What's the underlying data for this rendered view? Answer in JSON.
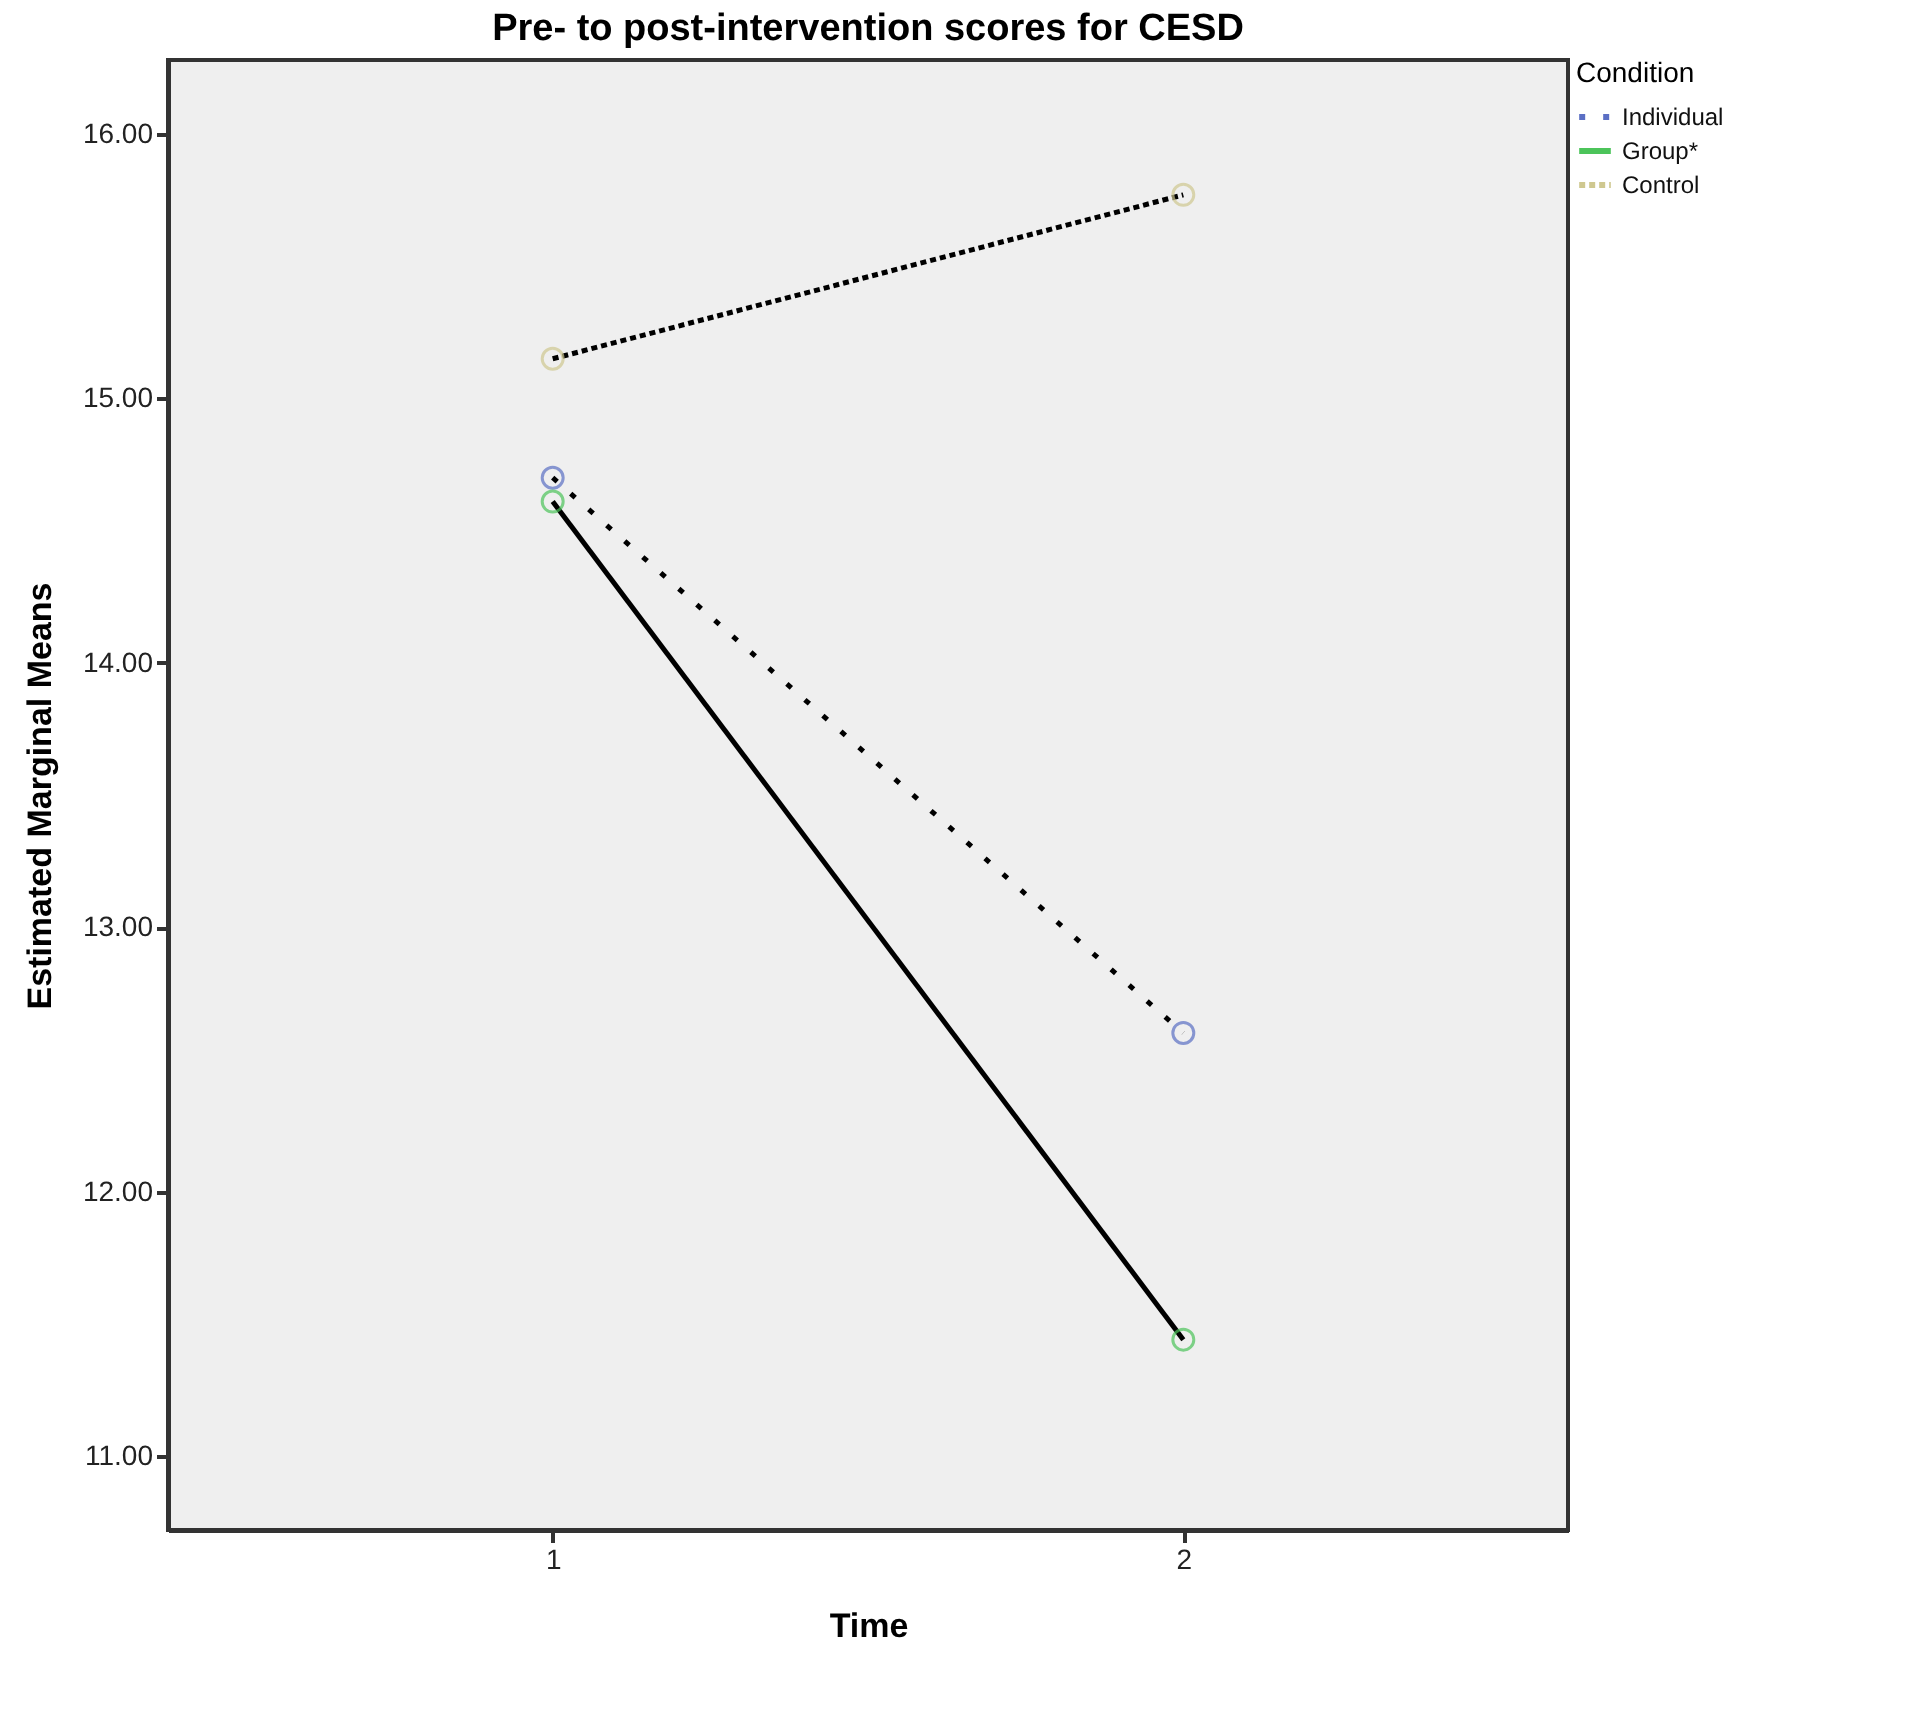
{
  "chart_data": {
    "type": "line",
    "title": "Pre- to post-intervention scores for CESD",
    "xlabel": "Time",
    "ylabel": "Estimated Marginal Means",
    "legend_title": "Condition",
    "categories": [
      "1",
      "2"
    ],
    "series": [
      {
        "name": "Individual",
        "color": "#5b6fc4",
        "line_style": "dotted",
        "values": [
          14.7,
          12.6
        ]
      },
      {
        "name": "Group*",
        "color": "#4cc45a",
        "line_style": "solid",
        "values": [
          14.61,
          11.44
        ]
      },
      {
        "name": "Control",
        "color": "#cfc890",
        "line_style": "dashed",
        "values": [
          15.15,
          15.77
        ]
      }
    ],
    "ylim": [
      10.72,
      16.28
    ],
    "yticks": [
      {
        "value": 11,
        "label": "11.00"
      },
      {
        "value": 12,
        "label": "12.00"
      },
      {
        "value": 13,
        "label": "13.00"
      },
      {
        "value": 14,
        "label": "14.00"
      },
      {
        "value": 15,
        "label": "15.00"
      },
      {
        "value": 16,
        "label": "16.00"
      }
    ],
    "grid": false,
    "legend": "top right",
    "marker": "circle"
  }
}
